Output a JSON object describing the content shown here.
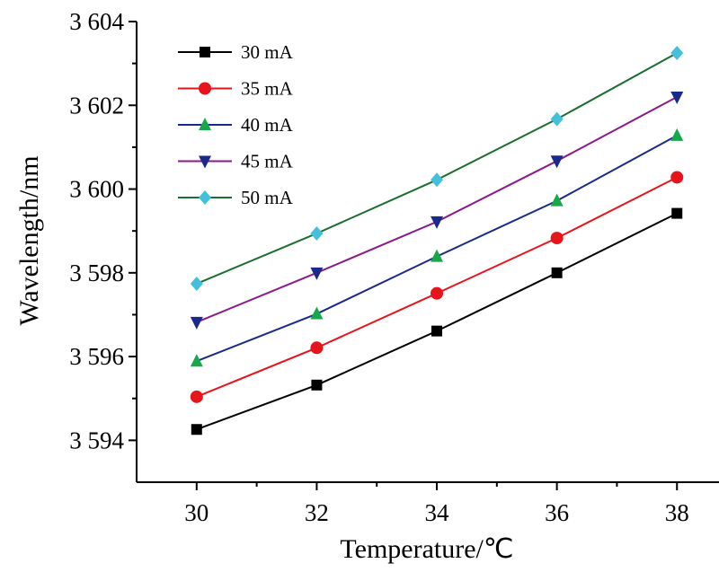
{
  "chart_data": {
    "type": "line",
    "title": "",
    "xlabel": "Temperature/℃",
    "ylabel": "Wavelength/nm",
    "x": [
      30,
      32,
      34,
      36,
      38
    ],
    "xlim": [
      29,
      38.7
    ],
    "ylim": [
      3593,
      3604
    ],
    "x_ticks": [
      30,
      32,
      34,
      36,
      38
    ],
    "x_tick_labels": [
      "30",
      "32",
      "34",
      "36",
      "38"
    ],
    "y_ticks": [
      3594,
      3596,
      3598,
      3600,
      3602,
      3604
    ],
    "y_tick_labels": [
      "3 594",
      "3 596",
      "3 598",
      "3 600",
      "3 602",
      "3 604"
    ],
    "grid": false,
    "legend_position": "top-left",
    "series": [
      {
        "name": "30 mA",
        "color": "#000000",
        "marker": "square",
        "values": [
          3594.26,
          3595.32,
          3596.61,
          3598.0,
          3599.42
        ]
      },
      {
        "name": "35 mA",
        "color": "#e8141c",
        "marker": "circle",
        "values": [
          3595.04,
          3596.21,
          3597.51,
          3598.83,
          3600.28
        ]
      },
      {
        "name": "40 mA",
        "color": "#1a2a8c",
        "marker": "triangle-up",
        "values": [
          3595.89,
          3597.02,
          3598.39,
          3599.72,
          3601.28
        ]
      },
      {
        "name": "45 mA",
        "color": "#8b1a8b",
        "marker": "triangle-down",
        "values": [
          3596.82,
          3598.0,
          3599.22,
          3600.67,
          3602.2
        ]
      },
      {
        "name": "50 mA",
        "color": "#1a6e2e",
        "marker": "diamond",
        "values": [
          3597.74,
          3598.94,
          3600.22,
          3601.67,
          3603.25
        ]
      }
    ],
    "marker_colors": {
      "square": "#000000",
      "circle": "#e8141c",
      "triangle-up": "#18a84a",
      "triangle-down": "#1a2a8c",
      "diamond": "#45c0dc"
    }
  }
}
